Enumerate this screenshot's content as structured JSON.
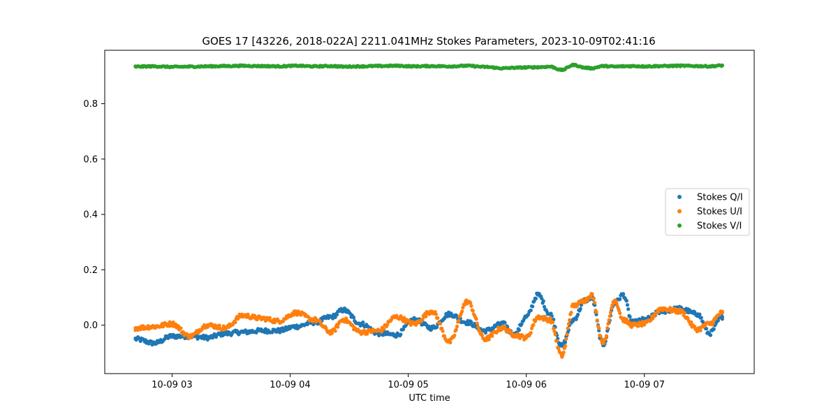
{
  "chart_data": {
    "type": "scatter",
    "title": "GOES 17 [43226, 2018-022A] 2211.041MHz Stokes Parameters, 2023-10-09T02:41:16",
    "xlabel": "UTC time",
    "ylabel": "",
    "x_ticks": [
      "10-09 03",
      "10-09 04",
      "10-09 05",
      "10-09 06",
      "10-09 07"
    ],
    "x_tick_hours": [
      3,
      4,
      5,
      6,
      7
    ],
    "y_ticks": [
      "0.0",
      "0.2",
      "0.4",
      "0.6",
      "0.8"
    ],
    "y_tick_values": [
      0.0,
      0.2,
      0.4,
      0.6,
      0.8
    ],
    "xlim_hours": [
      2.43,
      7.93
    ],
    "ylim": [
      -0.175,
      0.993
    ],
    "x_hours": [
      2.69,
      2.85,
      3.0,
      3.15,
      3.3,
      3.45,
      3.6,
      3.75,
      3.9,
      4.05,
      4.2,
      4.35,
      4.45,
      4.6,
      4.75,
      4.9,
      5.05,
      5.2,
      5.35,
      5.5,
      5.65,
      5.8,
      5.9,
      6.0,
      6.1,
      6.2,
      6.3,
      6.4,
      6.5,
      6.55,
      6.65,
      6.75,
      6.82,
      6.9,
      7.0,
      7.15,
      7.3,
      7.45,
      7.55,
      7.66
    ],
    "grid": false,
    "legend_position": "center-right",
    "series": [
      {
        "name": "Stokes Q/I",
        "color": "#1f77b4",
        "values": [
          -0.05,
          -0.065,
          -0.04,
          -0.04,
          -0.045,
          -0.03,
          -0.025,
          -0.02,
          -0.02,
          -0.005,
          0.01,
          0.03,
          0.055,
          0.005,
          -0.03,
          -0.035,
          0.02,
          -0.01,
          0.04,
          0.01,
          -0.02,
          0.005,
          -0.035,
          0.03,
          0.11,
          0.04,
          -0.075,
          0.02,
          0.09,
          0.1,
          -0.07,
          0.08,
          0.11,
          0.01,
          0.02,
          0.05,
          0.06,
          0.04,
          -0.03,
          0.03
        ]
      },
      {
        "name": "Stokes U/I",
        "color": "#ff7f0e",
        "values": [
          -0.01,
          -0.005,
          0.005,
          -0.04,
          0.0,
          -0.01,
          0.035,
          0.025,
          0.015,
          0.045,
          0.02,
          -0.025,
          0.02,
          -0.025,
          -0.02,
          0.03,
          0.005,
          0.05,
          -0.06,
          0.085,
          -0.05,
          -0.01,
          -0.035,
          -0.045,
          0.03,
          0.02,
          -0.11,
          0.07,
          0.09,
          0.11,
          -0.06,
          0.09,
          0.02,
          0.0,
          0.005,
          0.06,
          0.05,
          -0.015,
          0.005,
          0.045
        ]
      },
      {
        "name": "Stokes V/I",
        "color": "#2ca02c",
        "values": [
          0.934,
          0.935,
          0.933,
          0.934,
          0.935,
          0.936,
          0.937,
          0.936,
          0.935,
          0.937,
          0.935,
          0.936,
          0.934,
          0.935,
          0.936,
          0.937,
          0.935,
          0.936,
          0.935,
          0.937,
          0.933,
          0.928,
          0.93,
          0.931,
          0.932,
          0.934,
          0.922,
          0.94,
          0.93,
          0.928,
          0.936,
          0.934,
          0.935,
          0.936,
          0.935,
          0.936,
          0.937,
          0.936,
          0.935,
          0.938
        ]
      }
    ]
  }
}
